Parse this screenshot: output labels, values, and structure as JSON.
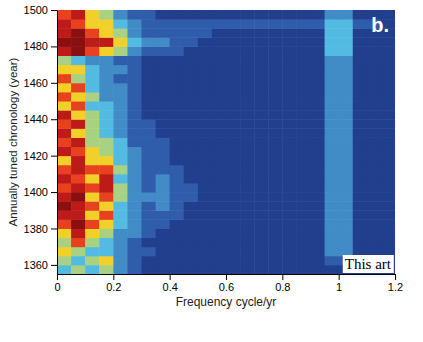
{
  "chart_data": {
    "type": "heatmap",
    "title": "b.",
    "x_label": "Frequency cycle/yr",
    "y_label": "Annually tuned chronology (year)",
    "xlim": [
      0,
      1.2
    ],
    "xticks": [
      0,
      0.2,
      0.4,
      0.6,
      0.8,
      1,
      1.2
    ],
    "ylim": [
      1355,
      1500
    ],
    "yticks": [
      1360,
      1380,
      1400,
      1420,
      1440,
      1460,
      1480,
      1500
    ],
    "x_edges": [
      0,
      0.05,
      0.1,
      0.15,
      0.2,
      0.25,
      0.3,
      0.35,
      0.4,
      0.45,
      0.5,
      0.55,
      0.6,
      0.65,
      0.7,
      0.75,
      0.8,
      0.85,
      0.9,
      0.95,
      1,
      1.05,
      1.1,
      1.15,
      1.2
    ],
    "y_edges": [
      1355,
      1360,
      1365,
      1370,
      1375,
      1380,
      1385,
      1390,
      1395,
      1400,
      1405,
      1410,
      1415,
      1420,
      1425,
      1430,
      1435,
      1440,
      1445,
      1450,
      1455,
      1460,
      1465,
      1470,
      1475,
      1480,
      1485,
      1490,
      1495,
      1500
    ],
    "z": [
      [
        4,
        5,
        4,
        5,
        3,
        2,
        1,
        1,
        1,
        1,
        1,
        1,
        1,
        1,
        1,
        1,
        1,
        1,
        1,
        1,
        1,
        1,
        1,
        1
      ],
      [
        5,
        4,
        5,
        6,
        3,
        2,
        1,
        1,
        1,
        1,
        1,
        1,
        1,
        1,
        1,
        1,
        1,
        1,
        1,
        2,
        2,
        1,
        1,
        1
      ],
      [
        6,
        5,
        4,
        4,
        3,
        2,
        2,
        1,
        1,
        1,
        1,
        1,
        1,
        1,
        1,
        1,
        1,
        1,
        1,
        3,
        3,
        1,
        1,
        1
      ],
      [
        5,
        7,
        5,
        4,
        3,
        2,
        1,
        1,
        1,
        1,
        1,
        1,
        1,
        1,
        1,
        1,
        1,
        1,
        1,
        3,
        3,
        1,
        1,
        1
      ],
      [
        6,
        8,
        6,
        5,
        3,
        3,
        2,
        1,
        1,
        1,
        1,
        1,
        1,
        1,
        1,
        1,
        1,
        1,
        1,
        3,
        3,
        1,
        1,
        1
      ],
      [
        7,
        9,
        7,
        6,
        4,
        3,
        2,
        2,
        1,
        1,
        1,
        1,
        1,
        1,
        1,
        1,
        1,
        1,
        1,
        3,
        3,
        1,
        1,
        1
      ],
      [
        8,
        8,
        6,
        7,
        4,
        3,
        2,
        2,
        2,
        1,
        1,
        1,
        1,
        1,
        1,
        1,
        1,
        1,
        1,
        3,
        3,
        1,
        1,
        1
      ],
      [
        9,
        8,
        7,
        6,
        4,
        3,
        2,
        3,
        2,
        1,
        1,
        1,
        1,
        1,
        1,
        1,
        1,
        1,
        1,
        3,
        3,
        1,
        1,
        1
      ],
      [
        8,
        9,
        6,
        7,
        5,
        3,
        3,
        3,
        2,
        2,
        1,
        1,
        1,
        1,
        1,
        1,
        1,
        1,
        1,
        3,
        3,
        1,
        1,
        1
      ],
      [
        7,
        8,
        7,
        8,
        5,
        3,
        2,
        3,
        2,
        2,
        1,
        1,
        1,
        1,
        1,
        1,
        1,
        1,
        1,
        3,
        3,
        1,
        1,
        1
      ],
      [
        8,
        7,
        6,
        8,
        4,
        3,
        2,
        3,
        2,
        1,
        1,
        1,
        1,
        1,
        1,
        1,
        1,
        1,
        1,
        3,
        3,
        1,
        1,
        1
      ],
      [
        7,
        8,
        7,
        7,
        5,
        3,
        2,
        2,
        2,
        1,
        1,
        1,
        1,
        1,
        1,
        1,
        1,
        1,
        1,
        3,
        3,
        1,
        1,
        1
      ],
      [
        6,
        8,
        6,
        6,
        4,
        3,
        2,
        2,
        1,
        1,
        1,
        1,
        1,
        1,
        1,
        1,
        1,
        1,
        1,
        3,
        3,
        1,
        1,
        1
      ],
      [
        8,
        7,
        6,
        5,
        4,
        3,
        2,
        2,
        1,
        1,
        1,
        1,
        1,
        1,
        1,
        1,
        1,
        1,
        1,
        3,
        3,
        1,
        1,
        1
      ],
      [
        7,
        8,
        5,
        5,
        4,
        2,
        2,
        2,
        1,
        1,
        1,
        1,
        1,
        1,
        1,
        1,
        1,
        1,
        1,
        3,
        3,
        1,
        1,
        1
      ],
      [
        8,
        6,
        5,
        4,
        3,
        2,
        2,
        1,
        1,
        1,
        1,
        1,
        1,
        1,
        1,
        1,
        1,
        1,
        1,
        3,
        3,
        1,
        1,
        1
      ],
      [
        7,
        8,
        5,
        4,
        3,
        2,
        2,
        1,
        1,
        1,
        1,
        1,
        1,
        1,
        1,
        1,
        1,
        1,
        1,
        3,
        3,
        1,
        1,
        1
      ],
      [
        8,
        6,
        5,
        4,
        3,
        2,
        1,
        1,
        1,
        1,
        1,
        1,
        1,
        1,
        1,
        1,
        1,
        1,
        1,
        3,
        3,
        1,
        1,
        1
      ],
      [
        6,
        7,
        4,
        4,
        3,
        2,
        1,
        1,
        1,
        1,
        1,
        1,
        1,
        1,
        1,
        1,
        1,
        1,
        1,
        3,
        3,
        1,
        1,
        1
      ],
      [
        7,
        6,
        5,
        3,
        3,
        2,
        1,
        1,
        1,
        1,
        1,
        1,
        1,
        1,
        1,
        1,
        1,
        1,
        1,
        3,
        3,
        1,
        1,
        1
      ],
      [
        6,
        7,
        4,
        3,
        3,
        2,
        1,
        1,
        1,
        1,
        1,
        1,
        1,
        1,
        1,
        1,
        1,
        1,
        1,
        3,
        3,
        1,
        1,
        1
      ],
      [
        7,
        5,
        4,
        3,
        2,
        2,
        1,
        1,
        1,
        1,
        1,
        1,
        1,
        1,
        1,
        1,
        1,
        1,
        1,
        3,
        3,
        1,
        1,
        1
      ],
      [
        6,
        6,
        4,
        3,
        3,
        2,
        1,
        1,
        1,
        1,
        1,
        1,
        1,
        1,
        1,
        1,
        1,
        1,
        1,
        3,
        3,
        1,
        1,
        1
      ],
      [
        5,
        4,
        3,
        3,
        2,
        2,
        1,
        1,
        1,
        1,
        1,
        1,
        1,
        1,
        1,
        1,
        1,
        1,
        1,
        3,
        3,
        1,
        1,
        1
      ],
      [
        8,
        9,
        7,
        6,
        5,
        3,
        2,
        2,
        2,
        1,
        1,
        1,
        1,
        1,
        1,
        1,
        1,
        1,
        1,
        4,
        4,
        1,
        1,
        1
      ],
      [
        9,
        9,
        8,
        8,
        6,
        4,
        3,
        3,
        2,
        2,
        1,
        1,
        1,
        1,
        1,
        1,
        1,
        1,
        1,
        4,
        4,
        1,
        1,
        1
      ],
      [
        8,
        9,
        7,
        6,
        5,
        3,
        2,
        2,
        2,
        2,
        2,
        1,
        1,
        1,
        1,
        1,
        1,
        1,
        1,
        4,
        4,
        1,
        1,
        1
      ],
      [
        8,
        7,
        6,
        6,
        4,
        3,
        2,
        2,
        2,
        2,
        2,
        2,
        2,
        2,
        2,
        2,
        2,
        2,
        2,
        4,
        4,
        2,
        2,
        1
      ],
      [
        7,
        8,
        6,
        5,
        3,
        2,
        2,
        1,
        1,
        1,
        1,
        1,
        1,
        1,
        1,
        1,
        1,
        1,
        1,
        3,
        3,
        1,
        1,
        1
      ]
    ],
    "color_range": [
      0,
      9
    ],
    "annotations": [
      "This art"
    ]
  }
}
